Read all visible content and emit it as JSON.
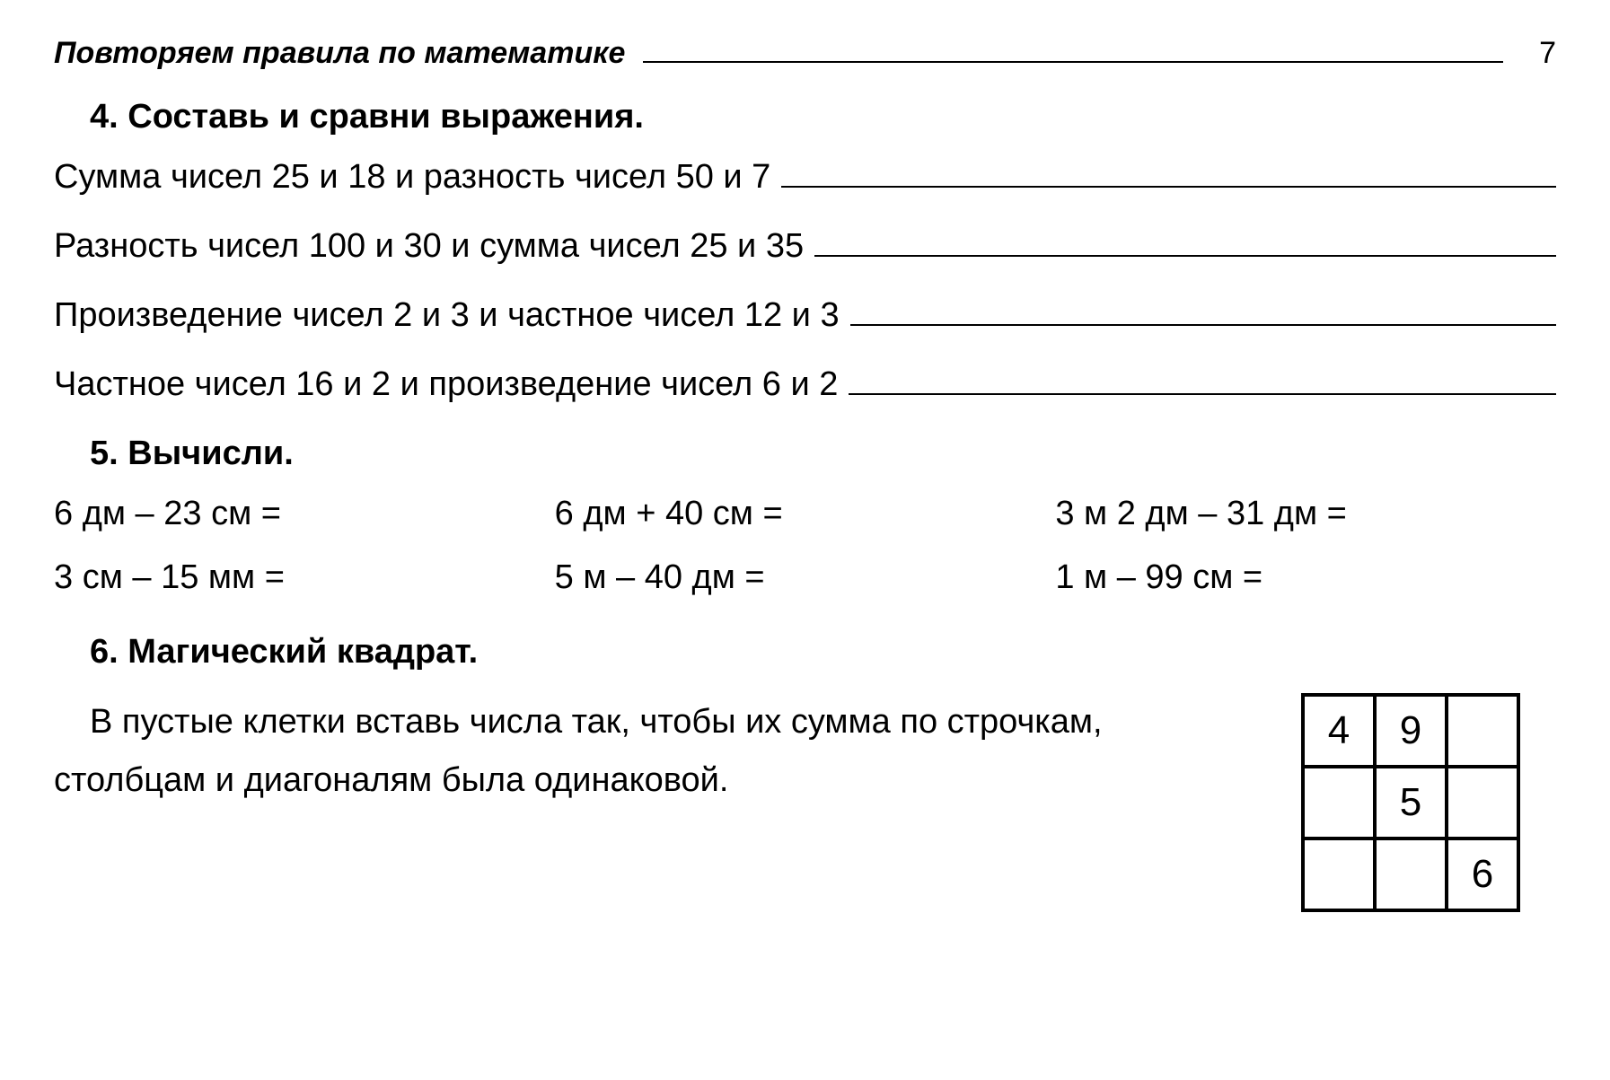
{
  "header": {
    "title": "Повторяем правила по математике",
    "page_number": "7"
  },
  "task4": {
    "heading": "4. Составь и сравни выражения.",
    "lines": [
      "Сумма чисел 25 и 18 и разность чисел 50 и 7",
      "Разность чисел 100 и 30 и сумма чисел 25 и 35",
      "Произведение чисел 2 и 3 и частное чисел 12 и 3",
      "Частное чисел 16 и 2 и произведение чисел 6 и 2"
    ]
  },
  "task5": {
    "heading": "5. Вычисли.",
    "cells": [
      "6 дм – 23 см =",
      "6 дм + 40 см =",
      "3 м 2 дм – 31 дм =",
      "3 см – 15 мм =",
      "5 м – 40 дм =",
      "1 м – 99 см ="
    ]
  },
  "task6": {
    "heading": "6. Магический квадрат.",
    "body": "В пустые клетки вставь числа так, чтобы их сумма по строчкам, столбцам и диагоналям была одинаковой.",
    "grid": [
      [
        "4",
        "9",
        ""
      ],
      [
        "",
        "5",
        ""
      ],
      [
        "",
        "",
        "6"
      ]
    ]
  }
}
